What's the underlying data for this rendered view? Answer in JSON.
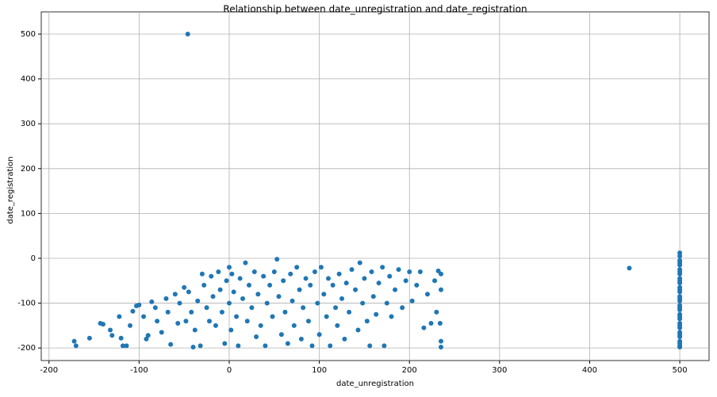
{
  "chart_data": {
    "type": "scatter",
    "title": "Relationship between date_unregistration and date_registration",
    "x_label": "date_unregistration",
    "y_label": "date_registration",
    "color": "#1f77b4",
    "grid": true,
    "xlim": [
      -208.6,
      532.5
    ],
    "ylim": [
      -228,
      549.5
    ],
    "xticks": [
      -200,
      -100,
      0,
      100,
      200,
      300,
      400,
      500
    ],
    "yticks": [
      -200,
      -100,
      0,
      100,
      200,
      300,
      400,
      500
    ],
    "x": [
      -46,
      444,
      500,
      500,
      500,
      500,
      500,
      500,
      500,
      500,
      500,
      500,
      500,
      500,
      500,
      500,
      500,
      500,
      500,
      500,
      500,
      500,
      500,
      500,
      500,
      500,
      500,
      500,
      500,
      500,
      500,
      500,
      500,
      500,
      500,
      -172,
      -170,
      -155,
      -143,
      -140,
      -132,
      -130,
      -122,
      -120,
      -118,
      -114,
      -110,
      -107,
      -103,
      -100,
      -95,
      -92,
      -90,
      -86,
      -82,
      -80,
      -75,
      -70,
      -68,
      -65,
      -60,
      -57,
      -55,
      -50,
      -48,
      -45,
      -42,
      -40,
      -38,
      -35,
      -32,
      -30,
      -28,
      -25,
      -22,
      -20,
      -18,
      -15,
      -12,
      -10,
      -8,
      -5,
      -3,
      0,
      0,
      2,
      3,
      5,
      8,
      10,
      12,
      15,
      18,
      20,
      22,
      25,
      28,
      30,
      32,
      35,
      38,
      40,
      42,
      45,
      48,
      50,
      53,
      55,
      58,
      60,
      62,
      65,
      68,
      70,
      72,
      75,
      78,
      80,
      82,
      85,
      88,
      90,
      92,
      95,
      98,
      100,
      102,
      105,
      108,
      110,
      112,
      115,
      118,
      120,
      122,
      125,
      128,
      130,
      133,
      136,
      140,
      143,
      145,
      148,
      150,
      153,
      156,
      158,
      160,
      163,
      166,
      170,
      172,
      175,
      178,
      180,
      184,
      188,
      192,
      196,
      200,
      203,
      208,
      212,
      216,
      220,
      224,
      228,
      230,
      232,
      234,
      235,
      235,
      235,
      235
    ],
    "values": [
      500,
      -22,
      12,
      5,
      -5,
      -15,
      -25,
      -35,
      -45,
      -55,
      -65,
      -75,
      -85,
      -95,
      -105,
      -115,
      -125,
      -135,
      -145,
      -155,
      -165,
      -175,
      -185,
      -195,
      -198,
      -10,
      -30,
      -50,
      -70,
      -90,
      -110,
      -130,
      -150,
      -170,
      -190,
      -185,
      -195,
      -178,
      -145,
      -147,
      -160,
      -172,
      -130,
      -178,
      -195,
      -195,
      -150,
      -118,
      -106,
      -104,
      -130,
      -180,
      -172,
      -97,
      -110,
      -140,
      -165,
      -90,
      -120,
      -192,
      -80,
      -145,
      -100,
      -65,
      -140,
      -75,
      -120,
      -198,
      -160,
      -95,
      -195,
      -35,
      -60,
      -110,
      -140,
      -40,
      -85,
      -150,
      -30,
      -70,
      -120,
      -190,
      -50,
      -20,
      -100,
      -160,
      -35,
      -75,
      -130,
      -195,
      -45,
      -90,
      -10,
      -140,
      -60,
      -110,
      -30,
      -175,
      -80,
      -150,
      -40,
      -195,
      -100,
      -60,
      -130,
      -30,
      -2,
      -85,
      -170,
      -50,
      -120,
      -190,
      -35,
      -95,
      -150,
      -20,
      -70,
      -180,
      -110,
      -45,
      -140,
      -60,
      -195,
      -30,
      -100,
      -170,
      -20,
      -80,
      -130,
      -45,
      -195,
      -60,
      -110,
      -150,
      -35,
      -90,
      -180,
      -55,
      -120,
      -25,
      -70,
      -160,
      -10,
      -100,
      -45,
      -140,
      -195,
      -30,
      -85,
      -125,
      -55,
      -20,
      -195,
      -100,
      -40,
      -130,
      -70,
      -25,
      -110,
      -50,
      -30,
      -95,
      -60,
      -30,
      -155,
      -80,
      -145,
      -50,
      -120,
      -28,
      -145,
      -185,
      -198,
      -70,
      -35
    ]
  }
}
